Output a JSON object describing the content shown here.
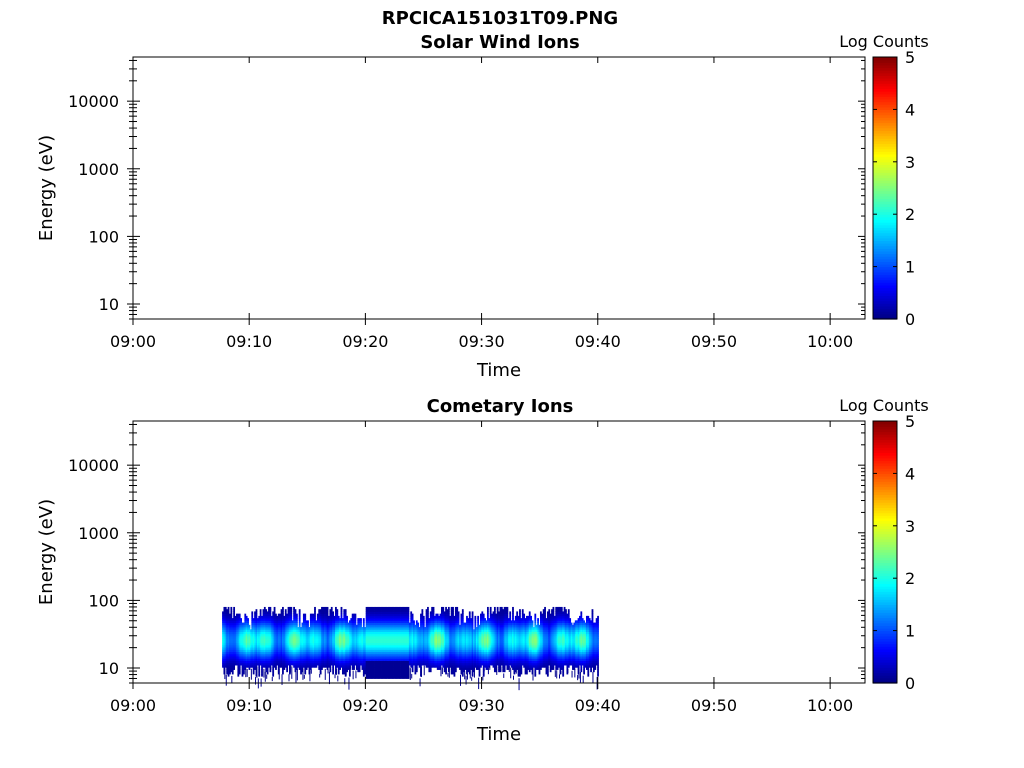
{
  "figure_title": "RPCICA151031T09.PNG",
  "chart_data": [
    {
      "type": "heatmap",
      "title": "Solar Wind Ions",
      "xlabel": "Time",
      "ylabel": "Energy (eV)",
      "x_range": [
        "09:00",
        "10:03"
      ],
      "x_ticks": [
        "09:00",
        "09:10",
        "09:20",
        "09:30",
        "09:40",
        "09:50",
        "10:00"
      ],
      "y_scale": "log",
      "y_range": [
        6,
        45000
      ],
      "y_ticks": [
        "10",
        "100",
        "1000",
        "10000"
      ],
      "colorbar": {
        "label": "Log Counts",
        "ticks": [
          "0",
          "1",
          "2",
          "3",
          "4",
          "5"
        ],
        "range": [
          0,
          5
        ],
        "colormap": "jet"
      },
      "data": []
    },
    {
      "type": "heatmap",
      "title": "Cometary Ions",
      "xlabel": "Time",
      "ylabel": "Energy (eV)",
      "x_range": [
        "09:00",
        "10:03"
      ],
      "x_ticks": [
        "09:00",
        "09:10",
        "09:20",
        "09:30",
        "09:40",
        "09:50",
        "10:00"
      ],
      "y_scale": "log",
      "y_range": [
        6,
        45000
      ],
      "y_ticks": [
        "10",
        "100",
        "1000",
        "10000"
      ],
      "colorbar": {
        "label": "Log Counts",
        "ticks": [
          "0",
          "1",
          "2",
          "3",
          "4",
          "5"
        ],
        "range": [
          0,
          5
        ],
        "colormap": "jet"
      },
      "data_time_range": [
        "09:07:40",
        "09:40:00"
      ],
      "data_energy_range_eV": [
        7,
        80
      ],
      "peak_energy_eV": 25,
      "peak_log_counts": 2.2
    }
  ]
}
